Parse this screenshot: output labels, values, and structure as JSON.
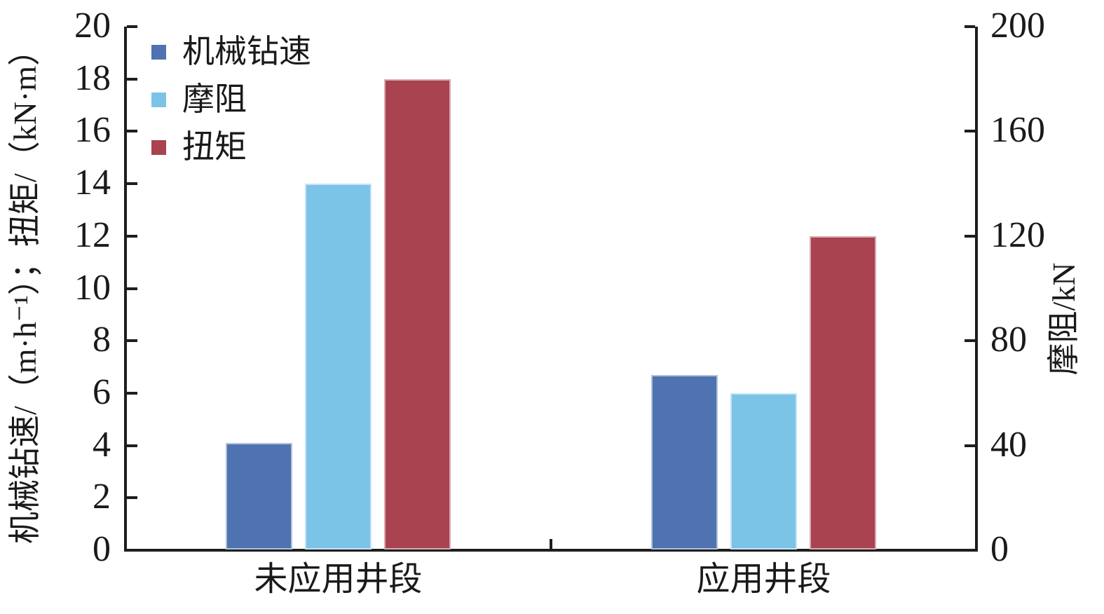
{
  "chart_data": {
    "type": "bar",
    "title": "",
    "categories": [
      "未应用井段",
      "应用井段"
    ],
    "series": [
      {
        "name": "机械钻速",
        "axis": "left",
        "unit": "m·h⁻¹",
        "values": [
          4.1,
          6.7
        ],
        "color": "#4F73B0"
      },
      {
        "name": "摩阻",
        "axis": "right",
        "unit": "kN",
        "values": [
          140,
          60
        ],
        "color": "#7CC3E8"
      },
      {
        "name": "扭矩",
        "axis": "left",
        "unit": "kN·m",
        "values": [
          18,
          12
        ],
        "color": "#A8434F"
      }
    ],
    "left_axis": {
      "label": "机械钻速/（m·h⁻¹）；扭矩/（kN·m）",
      "min": 0,
      "max": 20,
      "ticks": [
        0,
        2,
        4,
        6,
        8,
        10,
        12,
        14,
        16,
        18,
        20
      ]
    },
    "right_axis": {
      "label": "摩阻/kN",
      "min": 0,
      "max": 200,
      "ticks": [
        0,
        40,
        80,
        120,
        160,
        200
      ]
    },
    "legend": {
      "position": "top-left",
      "entries": [
        "机械钻速",
        "摩阻",
        "扭矩"
      ]
    },
    "grid": false,
    "axis_color": "#1e1e1e",
    "background": "#ffffff"
  }
}
